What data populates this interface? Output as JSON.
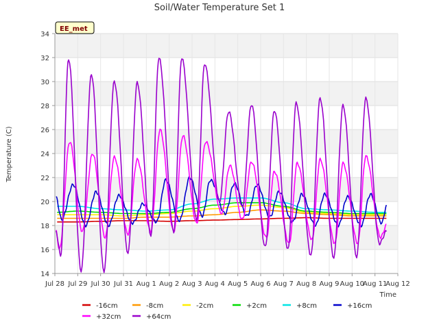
{
  "chart_data": {
    "type": "line",
    "title": "Soil/Water Temperature Set 1",
    "xlabel": "Time",
    "ylabel": "Temperature (C)",
    "badge": "EE_met",
    "ylim": [
      14,
      34
    ],
    "y_ticks": [
      14,
      16,
      18,
      20,
      22,
      24,
      26,
      28,
      30,
      32,
      34
    ],
    "xlim": [
      0,
      15
    ],
    "x_ticks": [
      0,
      1,
      2,
      3,
      4,
      5,
      6,
      7,
      8,
      9,
      10,
      11,
      12,
      13,
      14,
      15
    ],
    "x_tick_labels": [
      "Jul 28",
      "Jul 29",
      "Jul 30",
      "Jul 31",
      "Aug 1",
      "Aug 2",
      "Aug 3",
      "Aug 4",
      "Aug 5",
      "Aug 6",
      "Aug 7",
      "Aug 8",
      "Aug 9",
      "Aug 10",
      "Aug 11",
      "Aug 12"
    ],
    "x_unit": "days since Jul 28",
    "grid": true,
    "legend_position": "bottom",
    "series": [
      {
        "name": "-16cm",
        "color": "#d40000",
        "x": [
          0.1,
          1.0,
          2.0,
          3.0,
          4.0,
          5.0,
          6.0,
          7.0,
          8.0,
          9.0,
          10.0,
          11.0,
          12.0,
          13.0,
          14.0,
          14.5
        ],
        "y": [
          18.3,
          18.3,
          18.35,
          18.4,
          18.4,
          18.35,
          18.4,
          18.45,
          18.5,
          18.55,
          18.6,
          18.65,
          18.6,
          18.6,
          18.6,
          18.6
        ]
      },
      {
        "name": "-8cm",
        "color": "#ff9900",
        "x": [
          0.1,
          1.0,
          2.0,
          3.0,
          4.0,
          5.0,
          6.0,
          7.0,
          8.0,
          9.0,
          10.0,
          11.0,
          12.0,
          13.0,
          14.0,
          14.5
        ],
        "y": [
          18.6,
          18.6,
          18.6,
          18.6,
          18.7,
          18.7,
          18.8,
          18.9,
          19.1,
          19.3,
          19.2,
          19.0,
          18.9,
          18.8,
          18.8,
          18.8
        ]
      },
      {
        "name": "-2cm",
        "color": "#ffee00",
        "x": [
          0.1,
          1.0,
          2.0,
          3.0,
          4.0,
          5.0,
          6.0,
          7.0,
          8.0,
          9.0,
          10.0,
          11.0,
          12.0,
          13.0,
          14.0,
          14.5
        ],
        "y": [
          18.9,
          18.9,
          18.9,
          18.8,
          18.9,
          19.0,
          19.2,
          19.4,
          19.6,
          19.7,
          19.5,
          19.1,
          19.0,
          18.9,
          18.9,
          18.9
        ]
      },
      {
        "name": "+2cm",
        "color": "#00dd00",
        "x": [
          0.1,
          1.0,
          2.0,
          3.0,
          4.0,
          5.0,
          6.0,
          7.0,
          8.0,
          9.0,
          10.0,
          11.0,
          12.0,
          13.0,
          14.0,
          14.5
        ],
        "y": [
          19.1,
          19.2,
          19.1,
          19.0,
          19.0,
          19.1,
          19.4,
          19.7,
          19.9,
          19.9,
          19.6,
          19.2,
          19.1,
          19.0,
          19.0,
          19.0
        ]
      },
      {
        "name": "+8cm",
        "color": "#00e5e5",
        "x": [
          0.1,
          1.0,
          2.0,
          3.0,
          4.0,
          5.0,
          6.0,
          7.0,
          8.0,
          9.0,
          10.0,
          11.0,
          12.0,
          13.0,
          14.0,
          14.5
        ],
        "y": [
          19.6,
          19.6,
          19.4,
          19.3,
          19.2,
          19.3,
          19.8,
          20.2,
          20.3,
          20.3,
          19.9,
          19.4,
          19.3,
          19.2,
          19.1,
          19.1
        ]
      },
      {
        "name": "+16cm",
        "color": "#0000cc",
        "x": [
          0.05,
          0.3,
          0.8,
          1.35,
          1.8,
          2.35,
          2.8,
          3.4,
          3.85,
          4.45,
          4.85,
          5.45,
          5.9,
          6.45,
          6.8,
          7.45,
          7.85,
          8.4,
          8.85,
          9.4,
          9.8,
          10.4,
          10.8,
          11.4,
          11.8,
          12.4,
          12.8,
          13.4,
          13.8,
          14.3,
          14.5
        ],
        "y": [
          20.3,
          18.5,
          21.4,
          18.0,
          20.8,
          18.0,
          20.5,
          18.2,
          19.8,
          18.3,
          21.8,
          18.4,
          22.0,
          18.8,
          21.8,
          19.0,
          21.5,
          18.8,
          21.4,
          18.7,
          20.8,
          18.3,
          20.6,
          18.0,
          20.6,
          18.0,
          20.4,
          18.0,
          20.6,
          18.2,
          19.6
        ]
      },
      {
        "name": "+32cm",
        "color": "#ff00ff",
        "x": [
          0.05,
          0.2,
          0.65,
          1.2,
          1.65,
          2.2,
          2.6,
          3.2,
          3.6,
          4.2,
          4.6,
          5.2,
          5.6,
          6.2,
          6.6,
          7.3,
          7.65,
          8.2,
          8.6,
          9.25,
          9.6,
          10.25,
          10.6,
          11.25,
          11.6,
          12.25,
          12.6,
          13.25,
          13.6,
          14.25,
          14.5
        ],
        "y": [
          17.5,
          16.0,
          25.0,
          17.5,
          24.0,
          17.0,
          23.7,
          17.3,
          23.5,
          17.5,
          26.0,
          17.5,
          25.5,
          18.2,
          25.0,
          19.0,
          23.0,
          18.5,
          23.3,
          17.0,
          22.5,
          16.5,
          23.2,
          16.8,
          23.5,
          16.5,
          23.2,
          16.5,
          23.8,
          17.0,
          18.0
        ]
      },
      {
        "name": "+64cm",
        "color": "#9900cc",
        "x": [
          0.05,
          0.25,
          0.6,
          1.15,
          1.6,
          2.15,
          2.6,
          3.2,
          3.6,
          4.2,
          4.55,
          5.2,
          5.55,
          6.2,
          6.55,
          7.2,
          7.6,
          8.2,
          8.6,
          9.2,
          9.6,
          10.2,
          10.55,
          11.2,
          11.6,
          12.2,
          12.6,
          13.2,
          13.6,
          14.2,
          14.5
        ],
        "y": [
          17.5,
          15.5,
          31.9,
          14.2,
          30.6,
          14.2,
          30.0,
          15.7,
          29.9,
          17.2,
          32.0,
          17.5,
          32.0,
          18.5,
          31.5,
          20.0,
          27.5,
          19.5,
          28.1,
          16.2,
          27.6,
          16.0,
          28.2,
          15.5,
          28.6,
          15.3,
          28.0,
          15.4,
          28.6,
          16.5,
          17.5
        ]
      }
    ]
  }
}
